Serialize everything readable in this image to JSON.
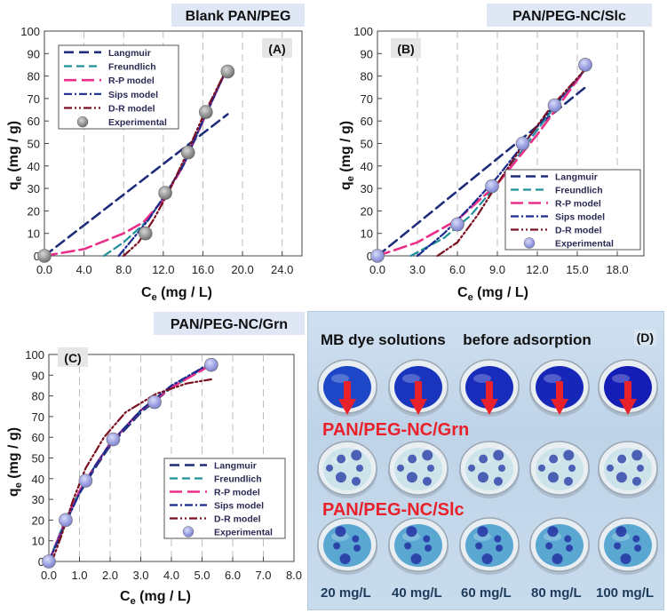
{
  "colors": {
    "langmuir": "#1f2d7a",
    "freundlich": "#1f8f9a",
    "rp": "#ea2f8a",
    "sips": "#1a2a8f",
    "dr": "#7a1020",
    "exp_gray": "#8f8f8f",
    "exp_lavender": "#9ea3e3",
    "title_bg": "#dfe7f5",
    "red_text": "#e8212b",
    "blue_dye": "#2837c9"
  },
  "legend_labels": [
    "Langmuir",
    "Freundlich",
    "R-P model",
    "Sips model",
    "D-R model",
    "Experimental"
  ],
  "chart_data": [
    {
      "panel": "A",
      "type": "scatter",
      "title": "Blank PAN/PEG",
      "xlabel": "Ce (mg / L)",
      "ylabel": "qe (mg / g)",
      "xlim": [
        0,
        26
      ],
      "ylim": [
        0,
        100
      ],
      "xticks": [
        "0.0",
        "4.0",
        "8.0",
        "12.0",
        "16.0",
        "20.0",
        "24.0"
      ],
      "xtick_values": [
        0,
        4,
        8,
        12,
        16,
        20,
        24
      ],
      "yticks": [
        0,
        10,
        20,
        30,
        40,
        50,
        60,
        70,
        80,
        90,
        100
      ],
      "legend_position": "top-left",
      "experimental": {
        "x": [
          0,
          10.2,
          12.2,
          14.5,
          16.3,
          18.5
        ],
        "y": [
          0,
          10,
          28,
          46,
          64,
          82
        ]
      },
      "series": [
        {
          "name": "Langmuir",
          "x": [
            0,
            18.5
          ],
          "y": [
            0,
            63
          ]
        },
        {
          "name": "Freundlich",
          "x": [
            6,
            8,
            10,
            12,
            14,
            16,
            18.5
          ],
          "y": [
            0,
            6,
            14,
            25,
            41,
            60,
            84
          ]
        },
        {
          "name": "R-P model",
          "x": [
            0,
            4,
            8,
            10,
            12,
            14,
            16,
            18.5
          ],
          "y": [
            0,
            3,
            10,
            15,
            25,
            40,
            60,
            84
          ]
        },
        {
          "name": "Sips model",
          "x": [
            7.5,
            9,
            10.5,
            12,
            14,
            16,
            18.5
          ],
          "y": [
            0,
            8,
            16,
            26,
            40,
            60,
            84
          ]
        },
        {
          "name": "D-R model",
          "x": [
            8,
            9.5,
            11,
            12.5,
            14,
            16,
            18.5
          ],
          "y": [
            0,
            6,
            16,
            28,
            42,
            62,
            84
          ]
        }
      ]
    },
    {
      "panel": "B",
      "type": "scatter",
      "title": "PAN/PEG-NC/Slc",
      "xlabel": "Ce (mg / L)",
      "ylabel": "qe (mg / g)",
      "xlim": [
        0,
        20
      ],
      "ylim": [
        0,
        100
      ],
      "xticks": [
        "0.0",
        "3.0",
        "6.0",
        "9.0",
        "12.0",
        "15.0",
        "18.0"
      ],
      "xtick_values": [
        0,
        3,
        6,
        9,
        12,
        15,
        18
      ],
      "yticks": [
        0,
        10,
        20,
        30,
        40,
        50,
        60,
        70,
        80,
        90,
        100
      ],
      "legend_position": "bottom-right",
      "experimental": {
        "x": [
          0,
          6.0,
          8.6,
          10.9,
          13.3,
          15.6
        ],
        "y": [
          0,
          14,
          31,
          50,
          67,
          85
        ]
      },
      "series": [
        {
          "name": "Langmuir",
          "x": [
            0,
            15.6
          ],
          "y": [
            0,
            75
          ]
        },
        {
          "name": "Freundlich",
          "x": [
            2.5,
            5,
            7,
            9,
            11,
            13,
            15.6
          ],
          "y": [
            0,
            8,
            18,
            32,
            48,
            64,
            83
          ]
        },
        {
          "name": "R-P model",
          "x": [
            0,
            3,
            6,
            9,
            12,
            15.6
          ],
          "y": [
            0,
            6,
            16,
            32,
            54,
            83
          ]
        },
        {
          "name": "Sips model",
          "x": [
            3,
            5,
            7,
            9,
            11,
            13,
            15.6
          ],
          "y": [
            0,
            10,
            22,
            35,
            50,
            65,
            83
          ]
        },
        {
          "name": "D-R model",
          "x": [
            4.5,
            6,
            7.5,
            9,
            11,
            13,
            15.6
          ],
          "y": [
            0,
            6,
            18,
            32,
            50,
            66,
            83
          ]
        }
      ]
    },
    {
      "panel": "C",
      "type": "scatter",
      "title": "PAN/PEG-NC/Grn",
      "xlabel": "Ce (mg / L)",
      "ylabel": "qe (mg / g)",
      "xlim": [
        0,
        8
      ],
      "ylim": [
        0,
        100
      ],
      "xticks": [
        "0.0",
        "1.0",
        "2.0",
        "3.0",
        "4.0",
        "5.0",
        "6.0",
        "7.0",
        "8.0"
      ],
      "xtick_values": [
        0,
        1,
        2,
        3,
        4,
        5,
        6,
        7,
        8
      ],
      "yticks": [
        0,
        10,
        20,
        30,
        40,
        50,
        60,
        70,
        80,
        90,
        100
      ],
      "legend_position": "bottom-right",
      "experimental": {
        "x": [
          0,
          0.55,
          1.2,
          2.1,
          3.45,
          5.3
        ],
        "y": [
          0,
          20,
          39,
          59,
          77,
          95
        ]
      },
      "series": [
        {
          "name": "Langmuir",
          "x": [
            0,
            0.5,
            1,
            1.5,
            2,
            3,
            4,
            5.3
          ],
          "y": [
            0,
            18,
            33,
            45,
            56,
            72,
            84,
            96
          ]
        },
        {
          "name": "Freundlich",
          "x": [
            0,
            0.5,
            1,
            1.5,
            2,
            3,
            4,
            5.3
          ],
          "y": [
            0,
            19,
            34,
            46,
            57,
            73,
            84,
            95
          ]
        },
        {
          "name": "R-P model",
          "x": [
            0,
            0.5,
            1,
            1.5,
            2,
            3,
            4,
            5.3
          ],
          "y": [
            0,
            18,
            34,
            46,
            57,
            73,
            84,
            95
          ]
        },
        {
          "name": "Sips model",
          "x": [
            0,
            0.5,
            1,
            1.5,
            2,
            3,
            4,
            5.3
          ],
          "y": [
            0,
            17,
            33,
            46,
            57,
            73,
            85,
            96
          ]
        },
        {
          "name": "D-R model",
          "x": [
            0.1,
            0.4,
            0.8,
            1.2,
            1.8,
            2.5,
            3.5,
            4.5,
            5.3
          ],
          "y": [
            0,
            12,
            30,
            45,
            60,
            72,
            81,
            86,
            88
          ]
        }
      ]
    }
  ],
  "photo": {
    "letter": "(D)",
    "heading_part1": "MB dye solutions",
    "heading_part2": "before adsorption",
    "label_grn": "PAN/PEG-NC/Grn",
    "label_slc": "PAN/PEG-NC/Slc",
    "concentrations": [
      "20 mg/L",
      "40 mg/L",
      "60 mg/L",
      "80 mg/L",
      "100 mg/L"
    ],
    "dye_intensity": [
      0.55,
      0.75,
      0.85,
      0.9,
      1.0
    ]
  }
}
